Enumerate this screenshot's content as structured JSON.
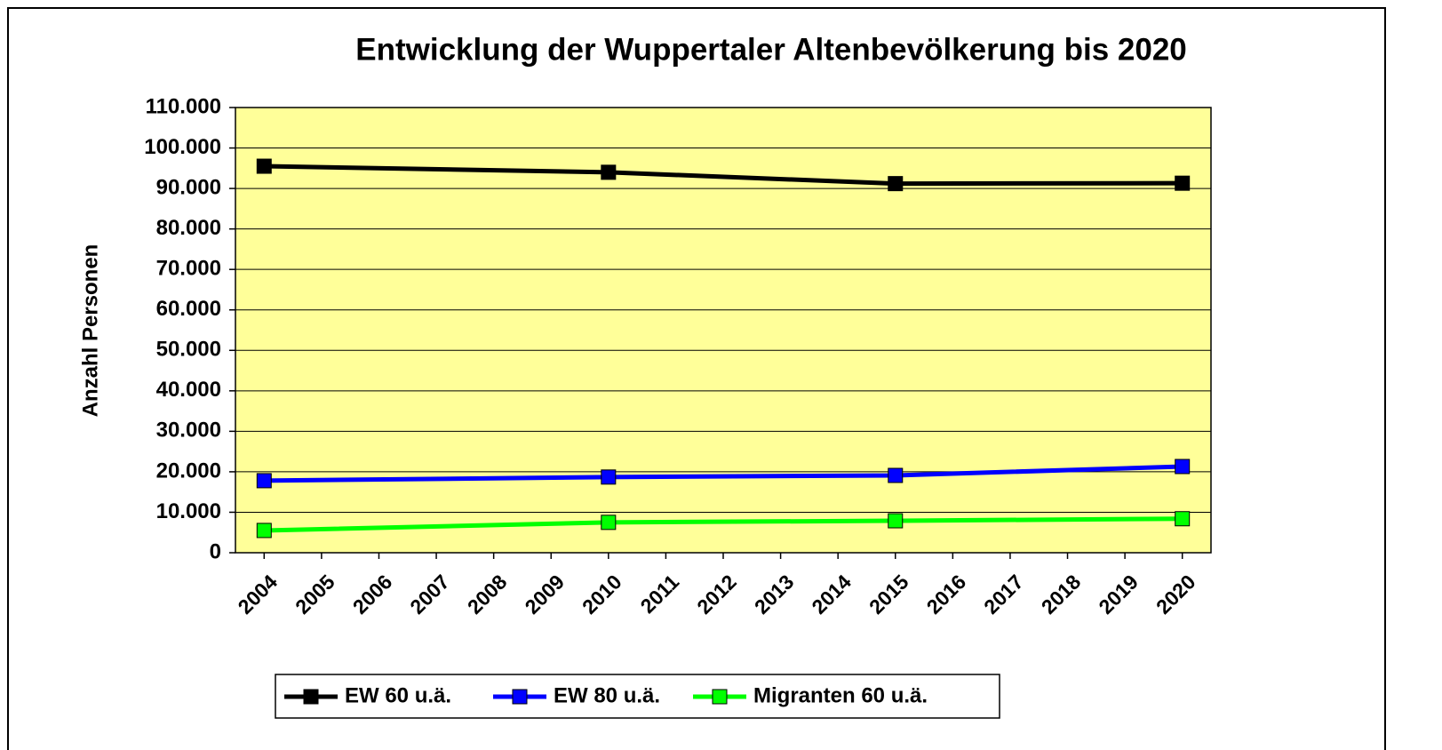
{
  "chart_data": {
    "type": "line",
    "title": "Entwicklung der Wuppertaler Altenbevölkerung bis 2020",
    "y_label": "Anzahl Personen",
    "x": [
      2004,
      2010,
      2015,
      2020
    ],
    "xlim": [
      2003.5,
      2020.5
    ],
    "xticks": [
      2004,
      2005,
      2006,
      2007,
      2008,
      2009,
      2010,
      2011,
      2012,
      2013,
      2014,
      2015,
      2016,
      2017,
      2018,
      2019,
      2020
    ],
    "ylim": [
      0,
      110000
    ],
    "yticks": [
      0,
      {
        "value": 10000,
        "label": "10.000"
      },
      {
        "value": 20000,
        "label": "20.000"
      },
      {
        "value": 30000,
        "label": "30.000"
      },
      {
        "value": 40000,
        "label": "40.000"
      },
      {
        "value": 50000,
        "label": "50.000"
      },
      {
        "value": 60000,
        "label": "60.000"
      },
      {
        "value": 70000,
        "label": "70.000"
      },
      {
        "value": 80000,
        "label": "80.000"
      },
      {
        "value": 90000,
        "label": "90.000"
      },
      {
        "value": 100000,
        "label": "100.000"
      },
      {
        "value": 110000,
        "label": "110.000"
      }
    ],
    "grid": true,
    "legend": "bottom",
    "series": [
      {
        "name": "EW 60 u.ä.",
        "color": "#000000",
        "values": [
          95500,
          94000,
          91200,
          91300
        ]
      },
      {
        "name": "EW 80 u.ä.",
        "color": "#0000ff",
        "values": [
          17800,
          18700,
          19100,
          21300
        ]
      },
      {
        "name": "Migranten 60 u.ä.",
        "color": "#00ff00",
        "values": [
          5500,
          7500,
          7900,
          8400
        ]
      }
    ]
  }
}
